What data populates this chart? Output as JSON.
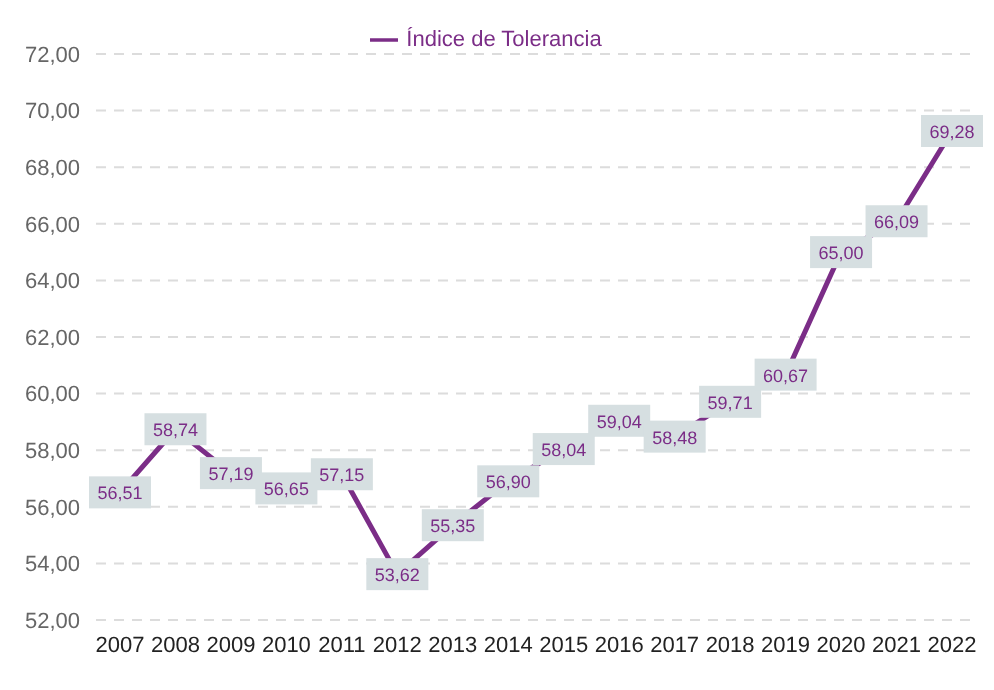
{
  "chart_data": {
    "type": "line",
    "categories": [
      "2007",
      "2008",
      "2009",
      "2010",
      "2011",
      "2012",
      "2013",
      "2014",
      "2015",
      "2016",
      "2017",
      "2018",
      "2019",
      "2020",
      "2021",
      "2022"
    ],
    "series": [
      {
        "name": "Índice de Tolerancia",
        "color": "#7b2d87",
        "values": [
          56.51,
          58.74,
          57.19,
          56.65,
          57.15,
          53.62,
          55.35,
          56.9,
          58.04,
          59.04,
          58.48,
          59.71,
          60.67,
          65.0,
          66.09,
          69.28
        ],
        "value_labels": [
          "56,51",
          "58,74",
          "57,19",
          "56,65",
          "57,15",
          "53,62",
          "55,35",
          "56,90",
          "58,04",
          "59,04",
          "58,48",
          "59,71",
          "60,67",
          "65,00",
          "66,09",
          "69,28"
        ]
      }
    ],
    "ylim": [
      52,
      72
    ],
    "yticks": [
      {
        "value": 52,
        "label": "52,00"
      },
      {
        "value": 54,
        "label": "54,00"
      },
      {
        "value": 56,
        "label": "56,00"
      },
      {
        "value": 58,
        "label": "58,00"
      },
      {
        "value": 60,
        "label": "60,00"
      },
      {
        "value": 62,
        "label": "62,00"
      },
      {
        "value": 64,
        "label": "64,00"
      },
      {
        "value": 66,
        "label": "66,00"
      },
      {
        "value": 68,
        "label": "68,00"
      },
      {
        "value": 70,
        "label": "70,00"
      },
      {
        "value": 72,
        "label": "72,00"
      }
    ],
    "grid": "y",
    "legend": "top",
    "marker": "square",
    "line_style": "solid"
  }
}
